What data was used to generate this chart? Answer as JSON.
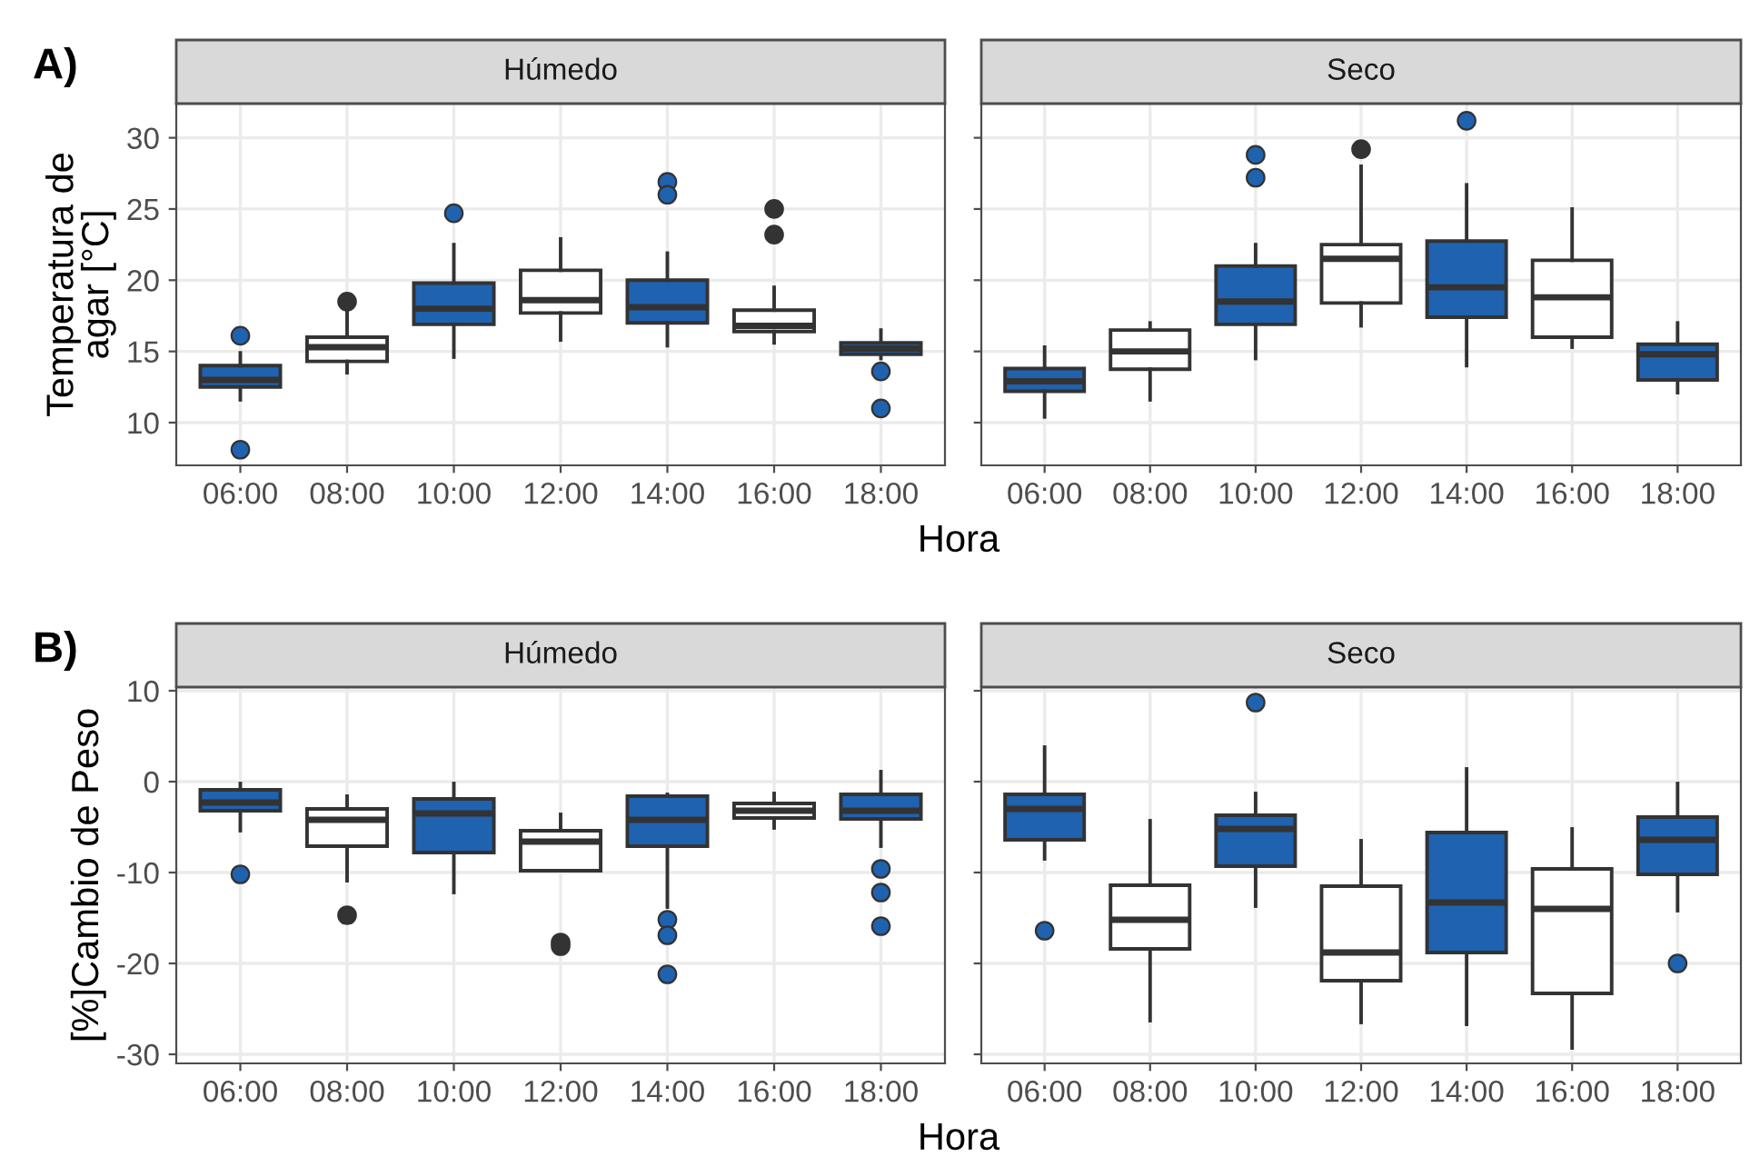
{
  "chart_data": [
    {
      "type": "box",
      "title": "Húmedo",
      "annotations": [
        "A)"
      ],
      "xlabel": "Hora",
      "ylabel": "Temperatura de\nagar [°C]",
      "categories": [
        "06:00",
        "08:00",
        "10:00",
        "12:00",
        "14:00",
        "16:00",
        "18:00"
      ],
      "colors": [
        "#1f62b0",
        "#ffffff",
        "#1f62b0",
        "#ffffff",
        "#1f62b0",
        "#ffffff",
        "#1f62b0"
      ],
      "ylim": [
        7,
        32.4
      ],
      "yticks": [
        10,
        15,
        20,
        25,
        30
      ],
      "grid": true,
      "boxes": [
        {
          "low": 11.6,
          "q1": 12.5,
          "median": 13.0,
          "q3": 14.0,
          "high": 14.9,
          "outliers": [
            16.1,
            8.1
          ]
        },
        {
          "low": 13.5,
          "q1": 14.3,
          "median": 15.3,
          "q3": 16.0,
          "high": 17.9,
          "outliers": [
            18.5
          ]
        },
        {
          "low": 14.6,
          "q1": 16.9,
          "median": 18.0,
          "q3": 19.8,
          "high": 22.5,
          "outliers": [
            24.7
          ]
        },
        {
          "low": 15.8,
          "q1": 17.7,
          "median": 18.6,
          "q3": 20.7,
          "high": 22.9
        },
        {
          "low": 15.4,
          "q1": 17.0,
          "median": 18.1,
          "q3": 20.0,
          "high": 21.9,
          "outliers": [
            26.9,
            26.0
          ]
        },
        {
          "low": 15.6,
          "q1": 16.4,
          "median": 16.8,
          "q3": 17.9,
          "high": 19.5,
          "outliers": [
            25.0,
            23.2
          ]
        },
        {
          "low": 14.5,
          "q1": 14.8,
          "median": 15.2,
          "q3": 15.6,
          "high": 16.5,
          "outliers": [
            13.6,
            11.0
          ]
        }
      ]
    },
    {
      "type": "box",
      "title": "Seco",
      "categories": [
        "06:00",
        "08:00",
        "10:00",
        "12:00",
        "14:00",
        "16:00",
        "18:00"
      ],
      "colors": [
        "#1f62b0",
        "#ffffff",
        "#1f62b0",
        "#ffffff",
        "#1f62b0",
        "#ffffff",
        "#1f62b0"
      ],
      "ylim": [
        7,
        32.4
      ],
      "yticks": [
        10,
        15,
        20,
        25,
        30
      ],
      "grid": true,
      "tick_labels": "x",
      "boxes": [
        {
          "low": 10.4,
          "q1": 12.2,
          "median": 12.9,
          "q3": 13.8,
          "high": 15.3
        },
        {
          "low": 11.6,
          "q1": 13.75,
          "median": 15.0,
          "q3": 16.5,
          "high": 17.0
        },
        {
          "low": 14.5,
          "q1": 16.9,
          "median": 18.5,
          "q3": 21.0,
          "high": 22.5,
          "outliers": [
            28.8,
            27.2
          ]
        },
        {
          "low": 16.8,
          "q1": 18.4,
          "median": 21.5,
          "q3": 22.5,
          "high": 28.0,
          "outliers": [
            29.2
          ]
        },
        {
          "low": 14.0,
          "q1": 17.4,
          "median": 19.5,
          "q3": 22.75,
          "high": 26.7,
          "outliers": [
            31.2
          ]
        },
        {
          "low": 15.3,
          "q1": 16.0,
          "median": 18.8,
          "q3": 21.4,
          "high": 25.0
        },
        {
          "low": 12.1,
          "q1": 13.0,
          "median": 14.8,
          "q3": 15.5,
          "high": 17.0
        }
      ]
    },
    {
      "type": "box",
      "title": "Húmedo",
      "annotations": [
        "B)"
      ],
      "xlabel": "Hora",
      "ylabel": "[%]Cambio de Peso",
      "categories": [
        "06:00",
        "08:00",
        "10:00",
        "12:00",
        "14:00",
        "16:00",
        "18:00"
      ],
      "colors": [
        "#1f62b0",
        "#ffffff",
        "#1f62b0",
        "#ffffff",
        "#1f62b0",
        "#ffffff",
        "#1f62b0"
      ],
      "ylim": [
        -31,
        10.4
      ],
      "yticks": [
        -30,
        -20,
        -10,
        0,
        10
      ],
      "grid": true,
      "boxes": [
        {
          "low": -5.4,
          "q1": -3.2,
          "median": -2.3,
          "q3": -0.9,
          "high": -0.2,
          "outliers": [
            -10.2
          ]
        },
        {
          "low": -10.9,
          "q1": -7.1,
          "median": -4.2,
          "q3": -3.0,
          "high": -1.6,
          "outliers": [
            -14.7
          ]
        },
        {
          "low": -12.2,
          "q1": -7.8,
          "median": -3.5,
          "q3": -1.9,
          "high": -0.2
        },
        {
          "low": -9.8,
          "q1": -9.8,
          "median": -6.6,
          "q3": -5.4,
          "high": -3.6,
          "outliers": [
            -17.7,
            -18.1
          ]
        },
        {
          "low": -13.8,
          "q1": -7.1,
          "median": -4.2,
          "q3": -1.6,
          "high": -1.4,
          "outliers": [
            -15.2,
            -16.9,
            -21.2
          ]
        },
        {
          "low": -5.1,
          "q1": -4.0,
          "median": -3.2,
          "q3": -2.4,
          "high": -1.3
        },
        {
          "low": -7.1,
          "q1": -4.1,
          "median": -3.2,
          "q3": -1.4,
          "high": 1.1,
          "outliers": [
            -9.6,
            -12.2,
            -15.9
          ]
        }
      ]
    },
    {
      "type": "box",
      "title": "Seco",
      "categories": [
        "06:00",
        "08:00",
        "10:00",
        "12:00",
        "14:00",
        "16:00",
        "18:00"
      ],
      "colors": [
        "#1f62b0",
        "#ffffff",
        "#1f62b0",
        "#ffffff",
        "#1f62b0",
        "#ffffff",
        "#1f62b0"
      ],
      "ylim": [
        -31,
        10.4
      ],
      "yticks": [
        -30,
        -20,
        -10,
        0,
        10
      ],
      "grid": true,
      "tick_labels": "x",
      "boxes": [
        {
          "low": -8.5,
          "q1": -6.4,
          "median": -3.0,
          "q3": -1.4,
          "high": 3.8,
          "outliers": [
            -16.4
          ]
        },
        {
          "low": -26.3,
          "q1": -18.4,
          "median": -15.2,
          "q3": -11.4,
          "high": -4.3
        },
        {
          "low": -13.7,
          "q1": -9.3,
          "median": -5.2,
          "q3": -3.7,
          "high": -1.3,
          "outliers": [
            8.7
          ]
        },
        {
          "low": -26.5,
          "q1": -21.9,
          "median": -18.8,
          "q3": -11.5,
          "high": -6.5
        },
        {
          "low": -26.7,
          "q1": -18.8,
          "median": -13.3,
          "q3": -5.6,
          "high": 1.4
        },
        {
          "low": -29.3,
          "q1": -23.3,
          "median": -14.0,
          "q3": -9.6,
          "high": -5.2
        },
        {
          "low": -14.2,
          "q1": -10.2,
          "median": -6.4,
          "q3": -3.9,
          "high": -0.2,
          "outliers": [
            -20.0
          ]
        }
      ]
    }
  ]
}
